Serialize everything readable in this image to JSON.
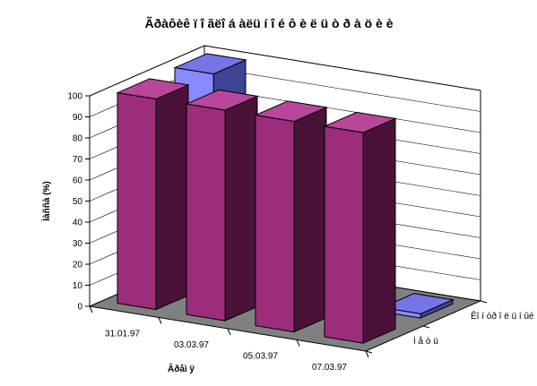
{
  "chart_data": {
    "type": "bar",
    "subtype": "3d-column",
    "title": "Ãðàôèê ïî ãëîáàëüíîé ôèëüòðàöèè",
    "title_display": "Ãðàôèê ï î ãëî á àëü í î é ô è ë ü ò ð à ö è è",
    "xlabel": "Âðåìÿ",
    "xlabel_display": "Âðåì ÿ",
    "ylabel": "Ïàññà (%)",
    "ylabel_display": "Ìàññà (%)",
    "ylim": [
      0,
      100
    ],
    "yticks": [
      0,
      10,
      20,
      30,
      40,
      50,
      60,
      70,
      80,
      90,
      100
    ],
    "grid": true,
    "categories": [
      "31.01.97",
      "03.03.97",
      "05.03.97",
      "07.03.97"
    ],
    "series": [
      {
        "name": "Ì å ò ü",
        "color_front": "#9B2D7A",
        "color_side": "#4A1238",
        "color_top": "#B8469A",
        "values": [
          100,
          100,
          100,
          100
        ]
      },
      {
        "name": "Êî í òð î ë ü í ûé",
        "color_front": "#8A8AFF",
        "color_side": "#3F4393",
        "color_top": "#7575E8",
        "values": [
          100,
          45,
          20,
          2
        ]
      }
    ]
  }
}
